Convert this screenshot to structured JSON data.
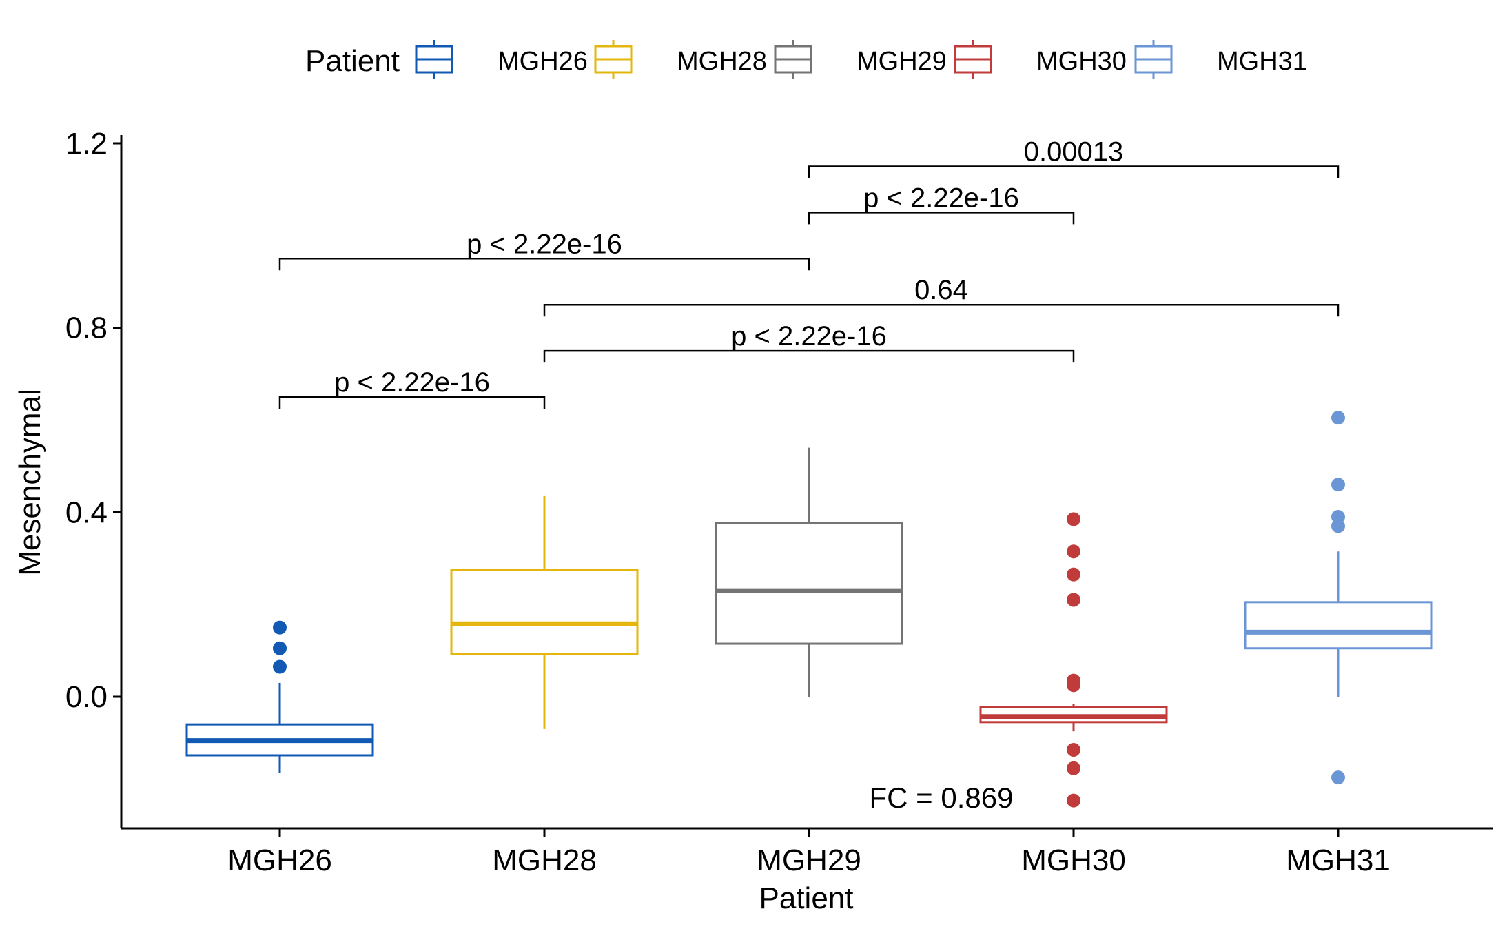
{
  "chart_data": {
    "type": "boxplot",
    "legend": {
      "title": "Patient",
      "placement": "top",
      "entries": [
        {
          "name": "MGH26",
          "color": "#1259B3"
        },
        {
          "name": "MGH28",
          "color": "#E5B70E"
        },
        {
          "name": "MGH29",
          "color": "#747474"
        },
        {
          "name": "MGH30",
          "color": "#C23B3B"
        },
        {
          "name": "MGH31",
          "color": "#6B96D6"
        }
      ]
    },
    "xlabel": "Patient",
    "ylabel": "Mesenchymal",
    "ylim": [
      -0.285,
      1.2
    ],
    "yticks": [
      {
        "value": 0.0,
        "label": "0.0"
      },
      {
        "value": 0.4,
        "label": "0.4"
      },
      {
        "value": 0.8,
        "label": "0.8"
      },
      {
        "value": 1.2,
        "label": "1.2"
      }
    ],
    "categories": [
      "MGH26",
      "MGH28",
      "MGH29",
      "MGH30",
      "MGH31"
    ],
    "boxes": [
      {
        "name": "MGH26",
        "color": "#1259B3",
        "whisker_low": -0.165,
        "q1": -0.127,
        "median": -0.095,
        "q3": -0.06,
        "whisker_high": 0.03,
        "outliers": [
          0.065,
          0.105,
          0.15
        ]
      },
      {
        "name": "MGH28",
        "color": "#E5B70E",
        "whisker_low": -0.07,
        "q1": 0.092,
        "median": 0.158,
        "q3": 0.275,
        "whisker_high": 0.435,
        "outliers": []
      },
      {
        "name": "MGH29",
        "color": "#747474",
        "whisker_low": 0.0,
        "q1": 0.115,
        "median": 0.23,
        "q3": 0.377,
        "whisker_high": 0.54,
        "outliers": []
      },
      {
        "name": "MGH30",
        "color": "#C23B3B",
        "whisker_low": -0.075,
        "q1": -0.055,
        "median": -0.043,
        "q3": -0.023,
        "whisker_high": -0.015,
        "outliers": [
          -0.225,
          -0.155,
          -0.115,
          0.025,
          0.035,
          0.21,
          0.265,
          0.315,
          0.385
        ]
      },
      {
        "name": "MGH31",
        "color": "#6B96D6",
        "whisker_low": 0.0,
        "q1": 0.105,
        "median": 0.14,
        "q3": 0.205,
        "whisker_high": 0.315,
        "outliers": [
          -0.175,
          0.37,
          0.39,
          0.46,
          0.605
        ]
      }
    ],
    "comparisons": [
      {
        "from": "MGH26",
        "to": "MGH28",
        "y": 0.65,
        "label": "p < 2.22e-16"
      },
      {
        "from": "MGH28",
        "to": "MGH30",
        "y": 0.75,
        "label": "p < 2.22e-16"
      },
      {
        "from": "MGH28",
        "to": "MGH31",
        "y": 0.85,
        "label": "0.64"
      },
      {
        "from": "MGH26",
        "to": "MGH29",
        "y": 0.95,
        "label": "p < 2.22e-16"
      },
      {
        "from": "MGH29",
        "to": "MGH30",
        "y": 1.05,
        "label": "p < 2.22e-16"
      },
      {
        "from": "MGH29",
        "to": "MGH31",
        "y": 1.15,
        "label": "0.00013"
      }
    ],
    "annotation": {
      "text": "FC = 0.869",
      "x_between": [
        "MGH29",
        "MGH30"
      ],
      "y": -0.22
    }
  }
}
